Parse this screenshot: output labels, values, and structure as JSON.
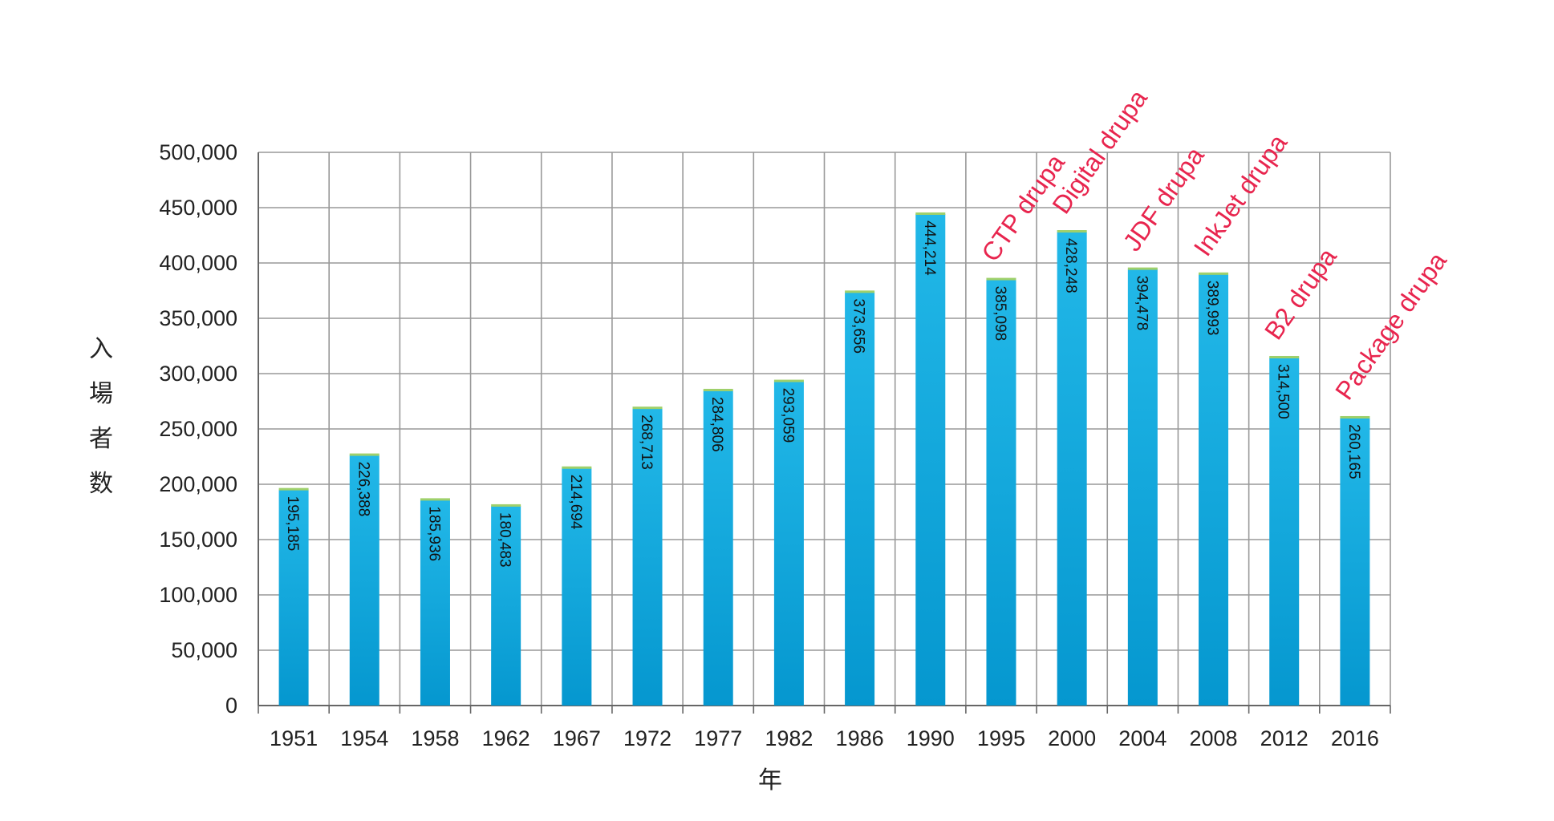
{
  "chart_data": {
    "type": "bar",
    "categories": [
      "1951",
      "1954",
      "1958",
      "1962",
      "1967",
      "1972",
      "1977",
      "1982",
      "1986",
      "1990",
      "1995",
      "2000",
      "2004",
      "2008",
      "2012",
      "2016"
    ],
    "values": [
      195185,
      226388,
      185936,
      180483,
      214694,
      268713,
      284806,
      293059,
      373656,
      444214,
      385098,
      428248,
      394478,
      389993,
      314500,
      260165
    ],
    "data_labels": [
      "195,185",
      "226,388",
      "185,936",
      "180,483",
      "214,694",
      "268,713",
      "284,806",
      "293,059",
      "373,656",
      "444,214",
      "385,098",
      "428,248",
      "394,478",
      "389,993",
      "314,500",
      "260,165"
    ],
    "y_ticks": [
      "0",
      "50,000",
      "100,000",
      "150,000",
      "200,000",
      "250,000",
      "300,000",
      "350,000",
      "400,000",
      "450,000",
      "500,000"
    ],
    "ylim": [
      0,
      500000
    ],
    "grid": true,
    "ylabel": "入場者数",
    "xlabel": "年",
    "annotations": [
      {
        "category": "1995",
        "text": "CTP drupa"
      },
      {
        "category": "2000",
        "text": "Digital drupa"
      },
      {
        "category": "2004",
        "text": "JDF drupa"
      },
      {
        "category": "2008",
        "text": "InkJet drupa"
      },
      {
        "category": "2012",
        "text": "B2 drupa"
      },
      {
        "category": "2016",
        "text": "Package drupa"
      }
    ],
    "colors": {
      "bar": "#0aaee0",
      "bar_top": "#9fd06b",
      "annotation": "#e8254e",
      "grid": "#999999"
    }
  }
}
